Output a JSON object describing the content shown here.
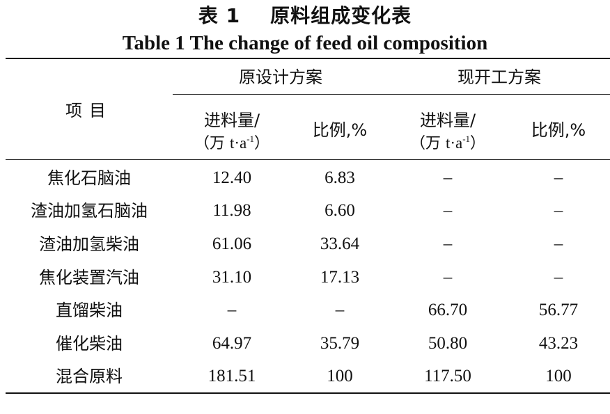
{
  "title_cn": "表 1    原料组成变化表",
  "title_en": "Table 1 The change of feed oil composition",
  "header": {
    "item": "项目",
    "group_original": "原设计方案",
    "group_current": "现开工方案",
    "feed_label": "进料量/",
    "feed_unit_open": "（万 ",
    "feed_unit_t": "t·a",
    "feed_unit_exp": "-1",
    "feed_unit_close": "）",
    "ratio_label": "比例,%"
  },
  "rows": [
    {
      "name": "焦化石脑油",
      "v1": "12.40",
      "v2": "6.83",
      "v3": "–",
      "v4": "–"
    },
    {
      "name": "渣油加氢石脑油",
      "v1": "11.98",
      "v2": "6.60",
      "v3": "–",
      "v4": "–"
    },
    {
      "name": "渣油加氢柴油",
      "v1": "61.06",
      "v2": "33.64",
      "v3": "–",
      "v4": "–"
    },
    {
      "name": "焦化装置汽油",
      "v1": "31.10",
      "v2": "17.13",
      "v3": "–",
      "v4": "–"
    },
    {
      "name": "直馏柴油",
      "v1": "–",
      "v2": "–",
      "v3": "66.70",
      "v4": "56.77"
    },
    {
      "name": "催化柴油",
      "v1": "64.97",
      "v2": "35.79",
      "v3": "50.80",
      "v4": "43.23"
    },
    {
      "name": "混合原料",
      "v1": "181.51",
      "v2": "100",
      "v3": "117.50",
      "v4": "100"
    }
  ]
}
